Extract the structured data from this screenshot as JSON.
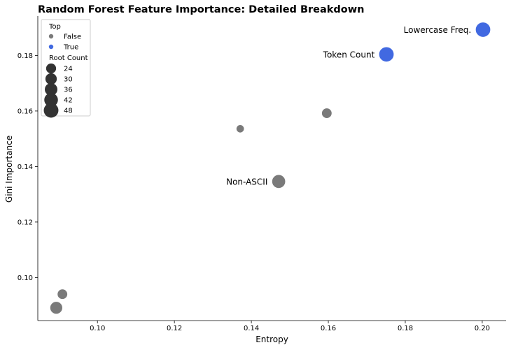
{
  "chart_data": {
    "type": "scatter",
    "title": "Random Forest Feature Importance: Detailed Breakdown",
    "xlabel": "Entropy",
    "ylabel": "Gini Importance",
    "xlim": [
      0.0845,
      0.2062
    ],
    "ylim": [
      0.0845,
      0.1942
    ],
    "x_ticks": [
      0.1,
      0.12,
      0.14,
      0.16,
      0.18,
      0.2
    ],
    "x_tick_labels": [
      "0.10",
      "0.12",
      "0.14",
      "0.16",
      "0.18",
      "0.20"
    ],
    "y_ticks": [
      0.1,
      0.12,
      0.14,
      0.16,
      0.18
    ],
    "y_tick_labels": [
      "0.10",
      "0.12",
      "0.14",
      "0.16",
      "0.18"
    ],
    "grid": false,
    "legend": {
      "placement": "top-left",
      "hue_title": "Top",
      "hue_entries": [
        {
          "label": "False",
          "color": "#7a7a7a"
        },
        {
          "label": "True",
          "color": "#4169e1"
        }
      ],
      "size_title": "Root Count",
      "size_entries": [
        {
          "label": "24",
          "value": 24
        },
        {
          "label": "30",
          "value": 30
        },
        {
          "label": "36",
          "value": 36
        },
        {
          "label": "42",
          "value": 42
        },
        {
          "label": "48",
          "value": 48
        }
      ]
    },
    "colors": {
      "false": "#7a7a7a",
      "true": "#4169e1",
      "legend_size_marker": "#333333"
    },
    "points": [
      {
        "x": 0.2002,
        "y": 0.1893,
        "root_count": 46,
        "top": true,
        "label": "Lowercase Freq."
      },
      {
        "x": 0.1751,
        "y": 0.1804,
        "root_count": 46,
        "top": true,
        "label": "Token Count"
      },
      {
        "x": 0.1596,
        "y": 0.1592,
        "root_count": 24,
        "top": false,
        "label": ""
      },
      {
        "x": 0.1371,
        "y": 0.1536,
        "root_count": 18,
        "top": false,
        "label": ""
      },
      {
        "x": 0.1471,
        "y": 0.1346,
        "root_count": 38,
        "top": false,
        "label": "Non-ASCII"
      },
      {
        "x": 0.0909,
        "y": 0.094,
        "root_count": 24,
        "top": false,
        "label": ""
      },
      {
        "x": 0.0893,
        "y": 0.0891,
        "root_count": 33,
        "top": false,
        "label": ""
      }
    ]
  }
}
